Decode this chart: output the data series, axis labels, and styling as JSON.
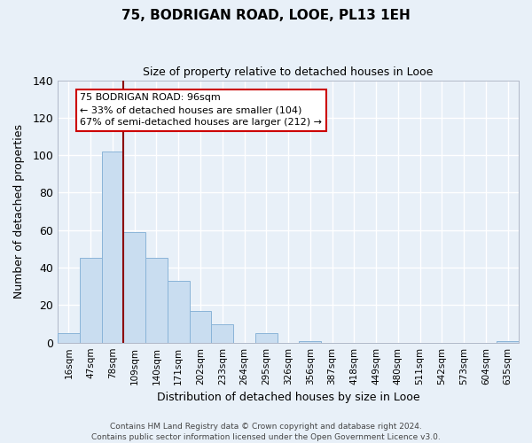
{
  "title": "75, BODRIGAN ROAD, LOOE, PL13 1EH",
  "subtitle": "Size of property relative to detached houses in Looe",
  "xlabel": "Distribution of detached houses by size in Looe",
  "ylabel": "Number of detached properties",
  "bar_labels": [
    "16sqm",
    "47sqm",
    "78sqm",
    "109sqm",
    "140sqm",
    "171sqm",
    "202sqm",
    "233sqm",
    "264sqm",
    "295sqm",
    "326sqm",
    "356sqm",
    "387sqm",
    "418sqm",
    "449sqm",
    "480sqm",
    "511sqm",
    "542sqm",
    "573sqm",
    "604sqm",
    "635sqm"
  ],
  "bar_heights": [
    5,
    45,
    102,
    59,
    45,
    33,
    17,
    10,
    0,
    5,
    0,
    1,
    0,
    0,
    0,
    0,
    0,
    0,
    0,
    0,
    1
  ],
  "bar_color": "#c9ddf0",
  "bar_edge_color": "#8ab4d8",
  "vline_color": "#8b0000",
  "annotation_title": "75 BODRIGAN ROAD: 96sqm",
  "annotation_line1": "← 33% of detached houses are smaller (104)",
  "annotation_line2": "67% of semi-detached houses are larger (212) →",
  "annotation_box_color": "#ffffff",
  "annotation_box_edge": "#cc0000",
  "ylim": [
    0,
    140
  ],
  "yticks": [
    0,
    20,
    40,
    60,
    80,
    100,
    120,
    140
  ],
  "bg_color": "#e8f0f8",
  "grid_color": "#ffffff",
  "footer_line1": "Contains HM Land Registry data © Crown copyright and database right 2024.",
  "footer_line2": "Contains public sector information licensed under the Open Government Licence v3.0."
}
